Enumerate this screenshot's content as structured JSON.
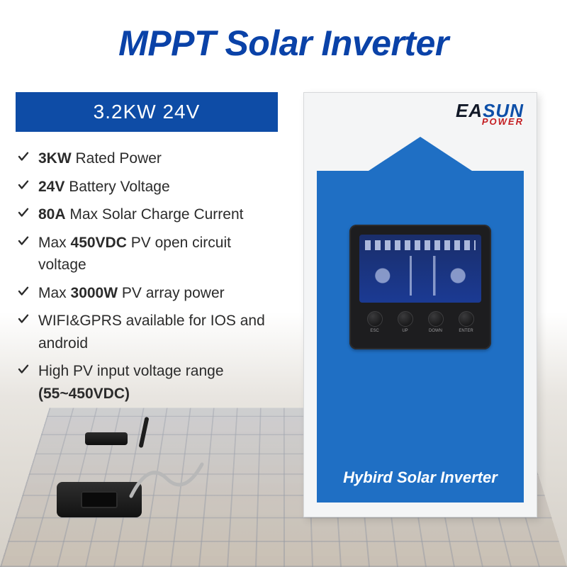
{
  "colors": {
    "title": "#0a42a8",
    "banner_bg": "#0e4ca6",
    "banner_text": "#ffffff",
    "device_body": "#1f6fc4",
    "check": "#2b2b2b",
    "logo_ea": "#111827",
    "logo_sun": "#0d4fa8",
    "logo_power": "#c41e22"
  },
  "title": "MPPT Solar Inverter",
  "banner": "3.2KW 24V",
  "specs": [
    {
      "bold": "3KW",
      "rest": " Rated Power"
    },
    {
      "bold": "24V",
      "rest": " Battery Voltage"
    },
    {
      "bold": "80A",
      "rest": " Max Solar Charge Current"
    },
    {
      "pre": "Max ",
      "bold": "450VDC",
      "rest": " PV open circuit voltage"
    },
    {
      "pre": "Max ",
      "bold": "3000W",
      "rest": " PV array power"
    },
    {
      "plain": "WIFI&GPRS available for IOS and android"
    },
    {
      "pre": "High PV input voltage range ",
      "bold": "(55~450VDC)"
    }
  ],
  "device": {
    "logo_top_ea": "EA",
    "logo_top_sun": "SUN",
    "logo_bottom": "POWER",
    "label": "Hybird Solar Inverter",
    "buttons": [
      "ESC",
      "UP",
      "DOWN",
      "ENTER"
    ]
  }
}
